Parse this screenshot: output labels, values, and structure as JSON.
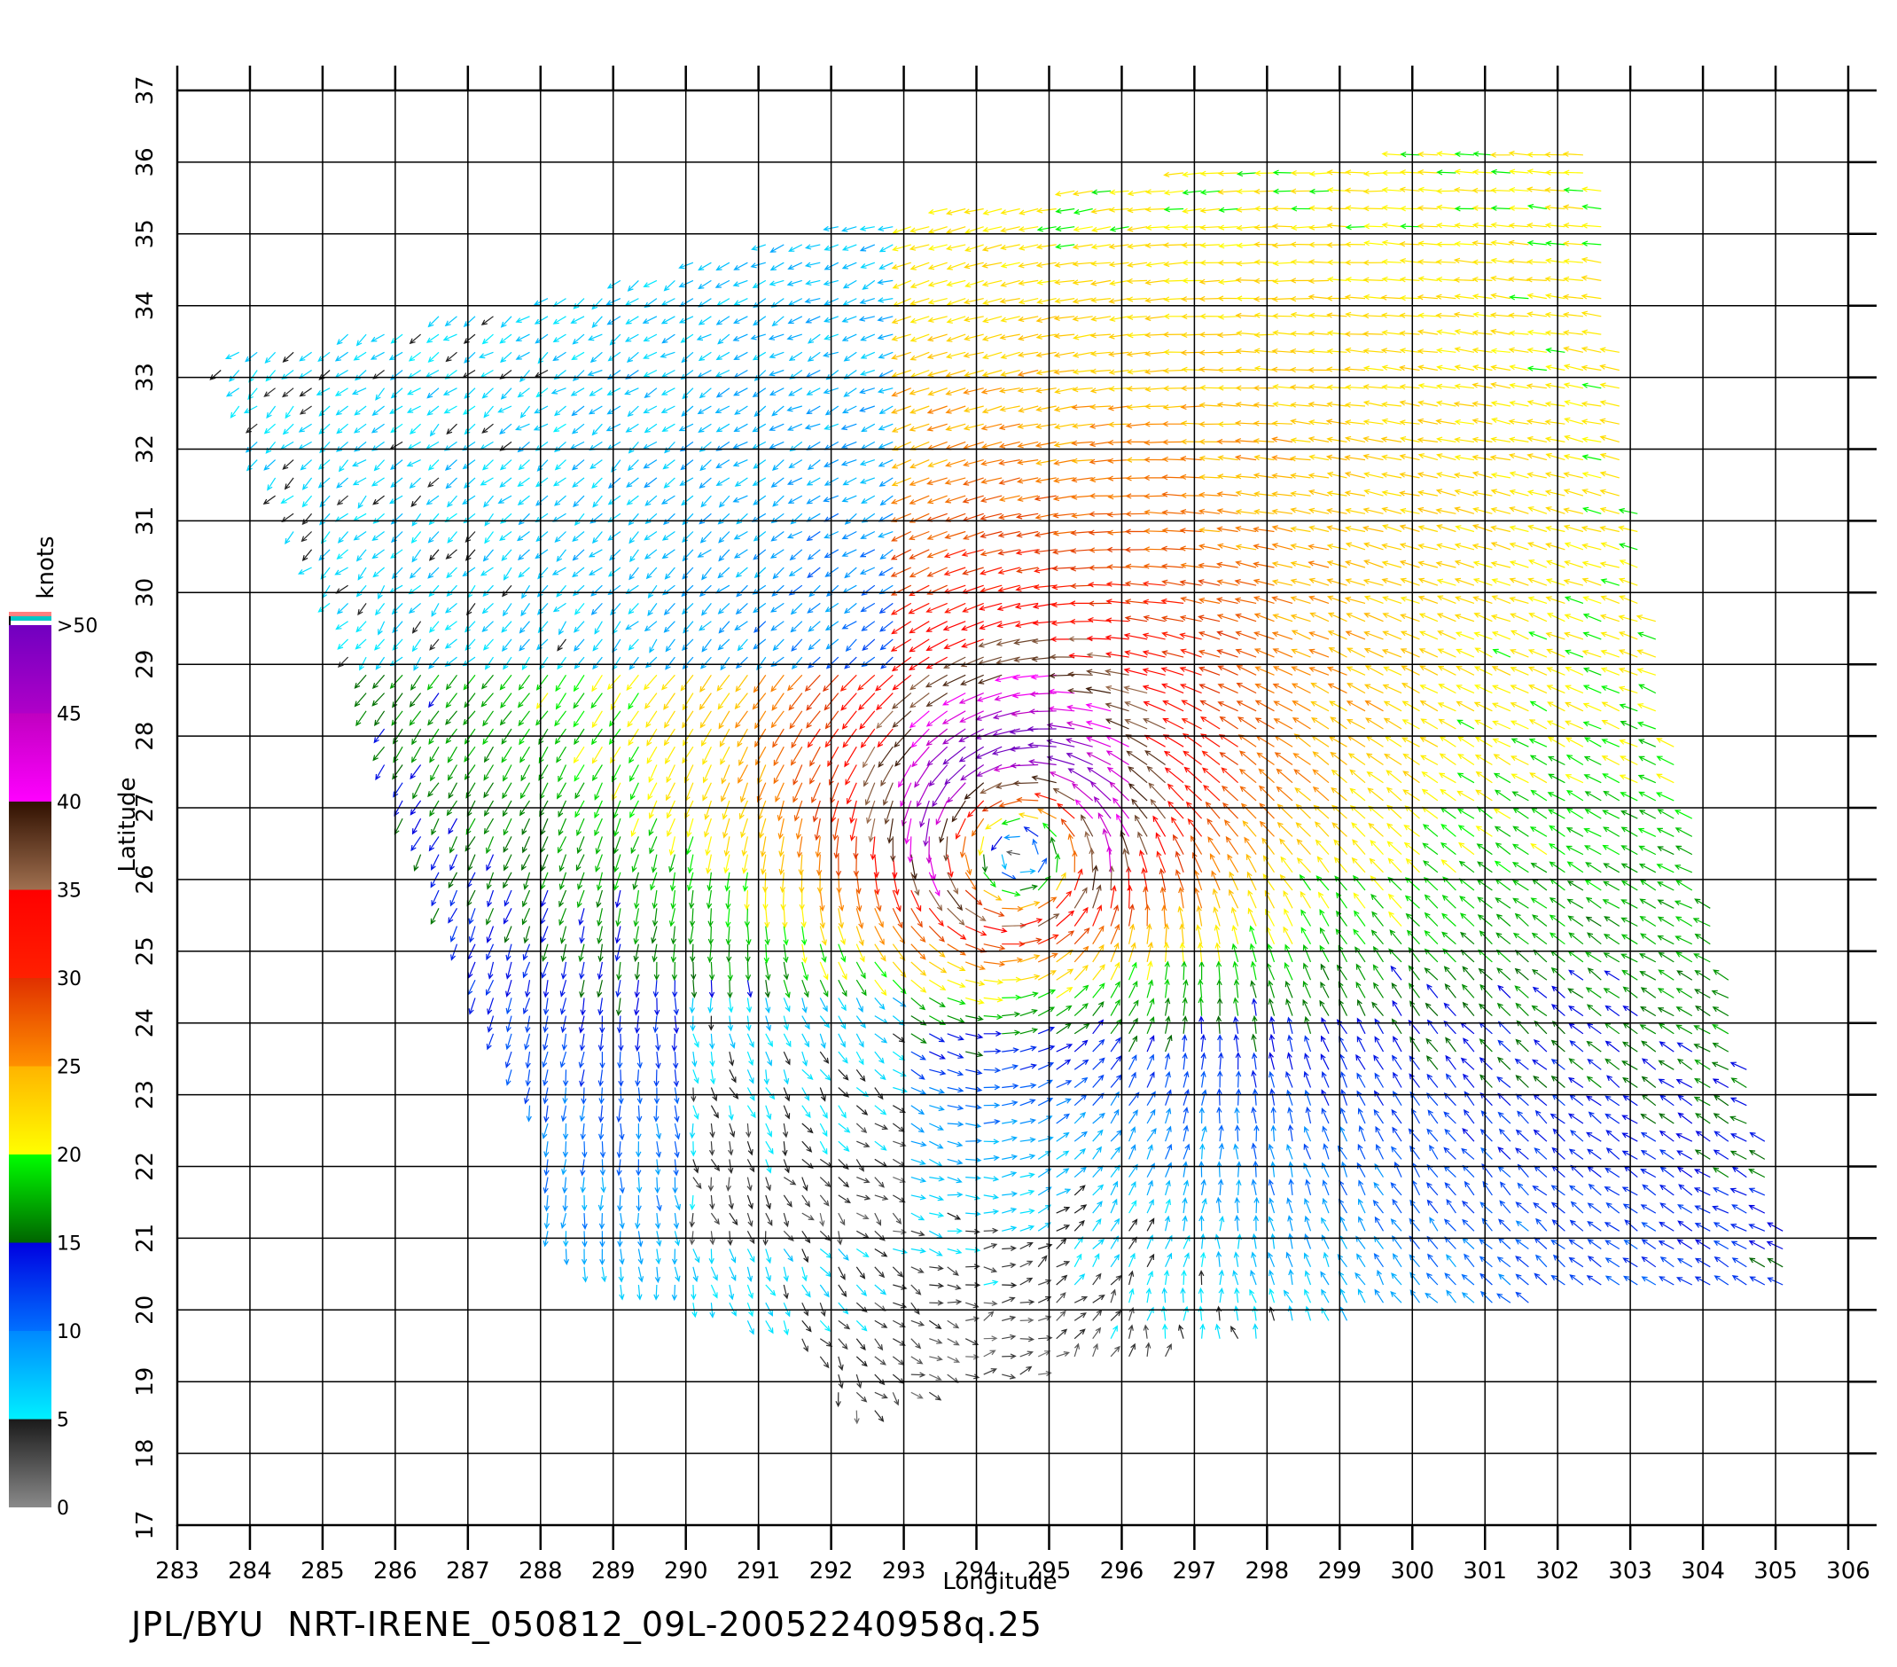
{
  "caption": "JPL/BYU  NRT-IRENE_050812_09L-20052240958q.25",
  "chart_data": {
    "type": "vector-field",
    "title": "",
    "xlabel": "Longitude",
    "ylabel": "Latitude",
    "xlim": [
      283,
      306
    ],
    "ylim": [
      17,
      37
    ],
    "x_ticks": [
      "283",
      "284",
      "285",
      "286",
      "287",
      "288",
      "289",
      "290",
      "291",
      "292",
      "293",
      "294",
      "295",
      "296",
      "297",
      "298",
      "299",
      "300",
      "301",
      "302",
      "303",
      "304",
      "305",
      "306"
    ],
    "y_ticks": [
      "17",
      "18",
      "19",
      "20",
      "21",
      "22",
      "23",
      "24",
      "25",
      "26",
      "27",
      "28",
      "29",
      "30",
      "31",
      "32",
      "33",
      "34",
      "35",
      "36",
      "37"
    ],
    "grid": true,
    "storm_center": {
      "lon": 294.6,
      "lat": 26.6
    },
    "colorbar": {
      "title": "knots",
      "tick_labels": [
        "0",
        "5",
        "10",
        "15",
        "20",
        "25",
        "30",
        "35",
        "40",
        "45",
        ">50"
      ],
      "bands": [
        {
          "from": 0,
          "to": 5,
          "colors": [
            "#8a8a8a",
            "#1a1a1a"
          ]
        },
        {
          "from": 5,
          "to": 10,
          "colors": [
            "#00f0ff",
            "#0088ff"
          ]
        },
        {
          "from": 10,
          "to": 15,
          "colors": [
            "#0070ff",
            "#0000e0"
          ]
        },
        {
          "from": 15,
          "to": 20,
          "colors": [
            "#006400",
            "#00ff00"
          ]
        },
        {
          "from": 20,
          "to": 25,
          "colors": [
            "#ffff00",
            "#ffb400"
          ]
        },
        {
          "from": 25,
          "to": 30,
          "colors": [
            "#ff9000",
            "#e03000"
          ]
        },
        {
          "from": 30,
          "to": 35,
          "colors": [
            "#ff2000",
            "#ff0000"
          ]
        },
        {
          "from": 35,
          "to": 40,
          "colors": [
            "#a07050",
            "#301000"
          ]
        },
        {
          "from": 40,
          "to": 45,
          "colors": [
            "#ff00ff",
            "#c000c0"
          ]
        },
        {
          "from": 45,
          "to": 50,
          "colors": [
            "#b000c8",
            "#7000c0"
          ]
        }
      ],
      "top_stripes": [
        "#00c8c8",
        "#ff8080",
        "#ffffff"
      ]
    }
  }
}
